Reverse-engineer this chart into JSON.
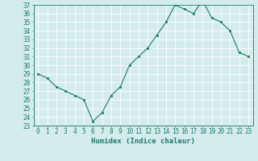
{
  "title": "",
  "xlabel": "Humidex (Indice chaleur)",
  "ylabel": "",
  "x": [
    0,
    1,
    2,
    3,
    4,
    5,
    6,
    7,
    8,
    9,
    10,
    11,
    12,
    13,
    14,
    15,
    16,
    17,
    18,
    19,
    20,
    21,
    22,
    23
  ],
  "y": [
    29.0,
    28.5,
    27.5,
    27.0,
    26.5,
    26.0,
    23.5,
    24.5,
    26.5,
    27.5,
    30.0,
    31.0,
    32.0,
    33.5,
    35.0,
    37.0,
    36.5,
    36.0,
    37.5,
    35.5,
    35.0,
    34.0,
    31.5,
    31.0
  ],
  "ylim": [
    23,
    37
  ],
  "xlim": [
    -0.5,
    23.5
  ],
  "yticks": [
    23,
    24,
    25,
    26,
    27,
    28,
    29,
    30,
    31,
    32,
    33,
    34,
    35,
    36,
    37
  ],
  "xticks": [
    0,
    1,
    2,
    3,
    4,
    5,
    6,
    7,
    8,
    9,
    10,
    11,
    12,
    13,
    14,
    15,
    16,
    17,
    18,
    19,
    20,
    21,
    22,
    23
  ],
  "line_color": "#1a7a6e",
  "marker_color": "#1a7a6e",
  "bg_color": "#d4ecec",
  "grid_color": "#ffffff",
  "tick_label_fontsize": 5.5,
  "xlabel_fontsize": 6.5
}
